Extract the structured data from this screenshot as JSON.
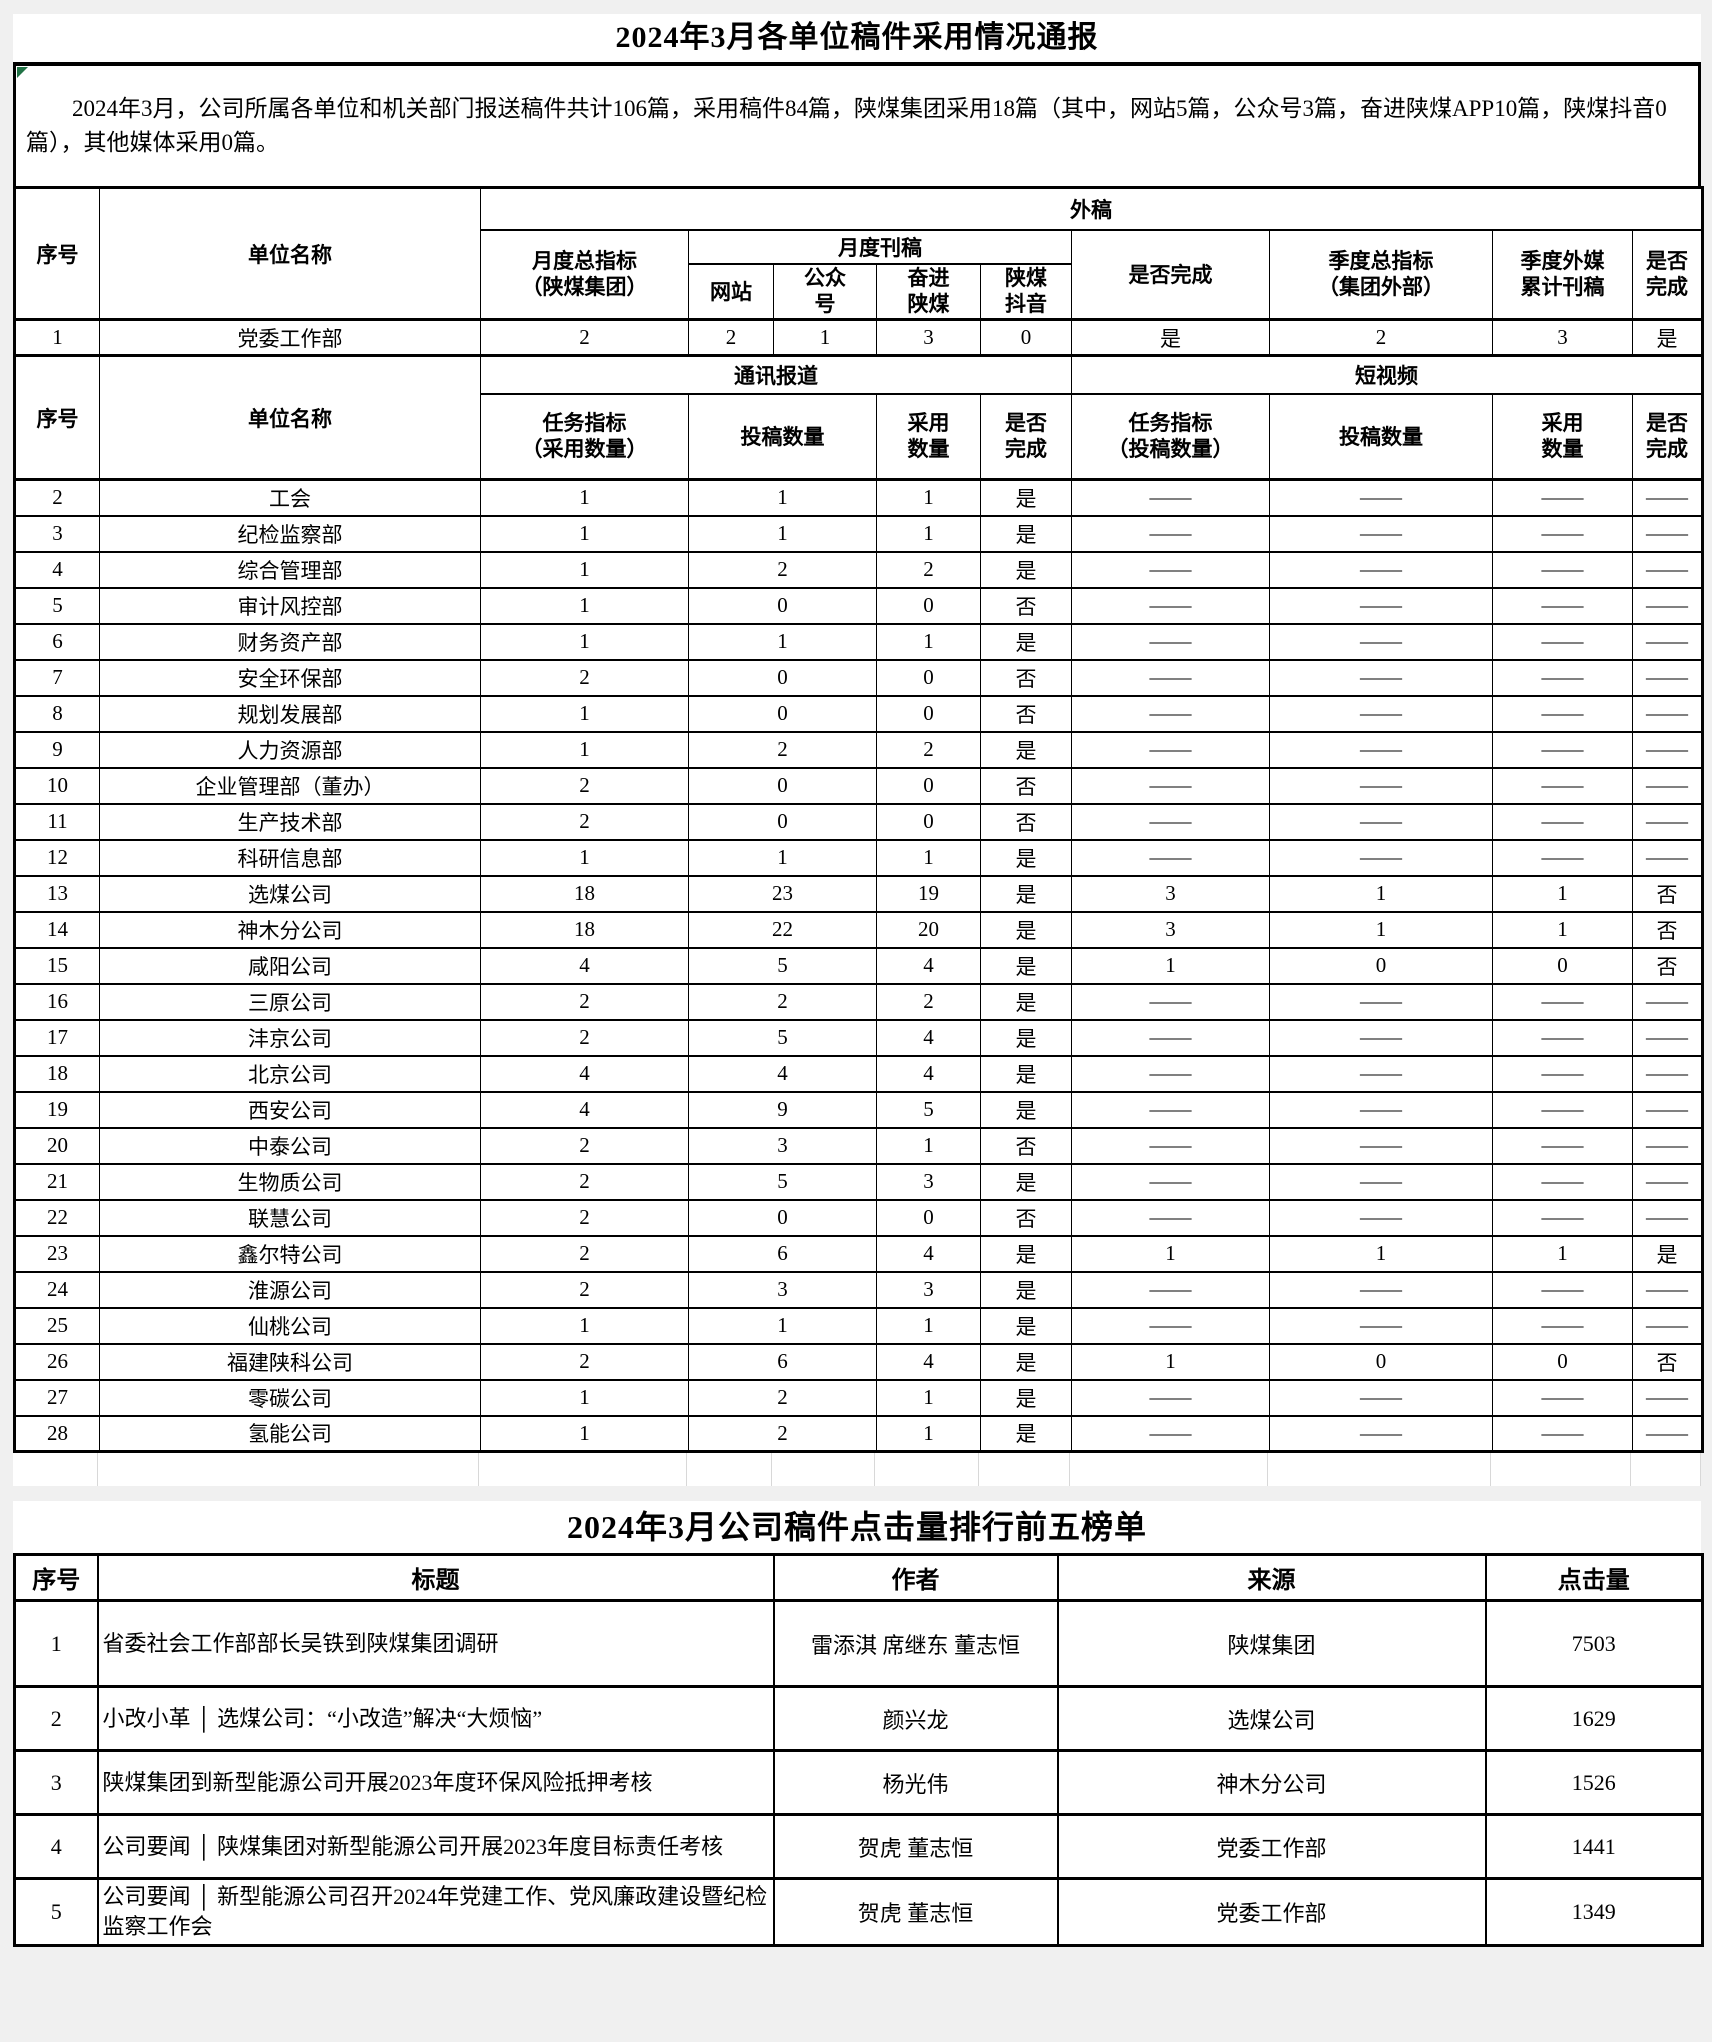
{
  "colors": {
    "error_indicator_green": "#217346",
    "page_margin_gray": "#f0f0f0",
    "border_black": "#000000",
    "faint_gridline": "#d8d8d8"
  },
  "report": {
    "title": "2024年3月各单位稿件采用情况通报",
    "summary": "2024年3月，公司所属各单位和机关部门报送稿件共计106篇，采用稿件84篇，陕煤集团采用18篇（其中，网站5篇，公众号3篇，奋进陕煤APP10篇，陕煤抖音0篇），其他媒体采用0篇。"
  },
  "table1": {
    "header": {
      "seq": "序号",
      "unit": "单位名称",
      "external": "外稿",
      "monthly_total": [
        "月度总指标",
        "（陕煤集团）"
      ],
      "monthly_published": "月度刊稿",
      "website": "网站",
      "wechat": [
        "公众",
        "号"
      ],
      "fenjin_app": [
        "奋进",
        "陕煤"
      ],
      "douyin": [
        "陕煤",
        "抖音"
      ],
      "completed_external": "是否完成",
      "quarter_total": [
        "季度总指标",
        "（集团外部）"
      ],
      "quarter_external_published": [
        "季度外媒",
        "累计刊稿"
      ],
      "completed_quarter": [
        "是否",
        "完成"
      ]
    },
    "first_row": {
      "no": "1",
      "name": "党委工作部",
      "values": [
        "2",
        "2",
        "1",
        "3",
        "0",
        "是",
        "2",
        "3",
        "是"
      ]
    },
    "header2": {
      "seq": "序号",
      "unit": "单位名称",
      "news_report": "通讯报道",
      "short_video": "短视频",
      "task_news": [
        "任务指标",
        "（采用数量）"
      ],
      "submitted_news": "投稿数量",
      "adopted_news": [
        "采用",
        "数量"
      ],
      "completed_news": [
        "是否",
        "完成"
      ],
      "task_video": [
        "任务指标",
        "（投稿数量）"
      ],
      "submitted_video": "投稿数量",
      "adopted_video": [
        "采用",
        "数量"
      ],
      "completed_video": [
        "是否",
        "完成"
      ]
    },
    "rows": [
      {
        "no": "2",
        "name": "工会",
        "values": [
          "1",
          "1",
          "1",
          "是",
          "——",
          "——",
          "——",
          "——"
        ]
      },
      {
        "no": "3",
        "name": "纪检监察部",
        "values": [
          "1",
          "1",
          "1",
          "是",
          "——",
          "——",
          "——",
          "——"
        ]
      },
      {
        "no": "4",
        "name": "综合管理部",
        "values": [
          "1",
          "2",
          "2",
          "是",
          "——",
          "——",
          "——",
          "——"
        ]
      },
      {
        "no": "5",
        "name": "审计风控部",
        "values": [
          "1",
          "0",
          "0",
          "否",
          "——",
          "——",
          "——",
          "——"
        ]
      },
      {
        "no": "6",
        "name": "财务资产部",
        "values": [
          "1",
          "1",
          "1",
          "是",
          "——",
          "——",
          "——",
          "——"
        ]
      },
      {
        "no": "7",
        "name": "安全环保部",
        "values": [
          "2",
          "0",
          "0",
          "否",
          "——",
          "——",
          "——",
          "——"
        ]
      },
      {
        "no": "8",
        "name": "规划发展部",
        "values": [
          "1",
          "0",
          "0",
          "否",
          "——",
          "——",
          "——",
          "——"
        ]
      },
      {
        "no": "9",
        "name": "人力资源部",
        "values": [
          "1",
          "2",
          "2",
          "是",
          "——",
          "——",
          "——",
          "——"
        ]
      },
      {
        "no": "10",
        "name": "企业管理部（董办）",
        "values": [
          "2",
          "0",
          "0",
          "否",
          "——",
          "——",
          "——",
          "——"
        ]
      },
      {
        "no": "11",
        "name": "生产技术部",
        "values": [
          "2",
          "0",
          "0",
          "否",
          "——",
          "——",
          "——",
          "——"
        ]
      },
      {
        "no": "12",
        "name": "科研信息部",
        "values": [
          "1",
          "1",
          "1",
          "是",
          "——",
          "——",
          "——",
          "——"
        ]
      },
      {
        "no": "13",
        "name": "选煤公司",
        "values": [
          "18",
          "23",
          "19",
          "是",
          "3",
          "1",
          "1",
          "否"
        ]
      },
      {
        "no": "14",
        "name": "神木分公司",
        "values": [
          "18",
          "22",
          "20",
          "是",
          "3",
          "1",
          "1",
          "否"
        ]
      },
      {
        "no": "15",
        "name": "咸阳公司",
        "values": [
          "4",
          "5",
          "4",
          "是",
          "1",
          "0",
          "0",
          "否"
        ]
      },
      {
        "no": "16",
        "name": "三原公司",
        "values": [
          "2",
          "2",
          "2",
          "是",
          "——",
          "——",
          "——",
          "——"
        ]
      },
      {
        "no": "17",
        "name": "沣京公司",
        "values": [
          "2",
          "5",
          "4",
          "是",
          "——",
          "——",
          "——",
          "——"
        ]
      },
      {
        "no": "18",
        "name": "北京公司",
        "values": [
          "4",
          "4",
          "4",
          "是",
          "——",
          "——",
          "——",
          "——"
        ]
      },
      {
        "no": "19",
        "name": "西安公司",
        "values": [
          "4",
          "9",
          "5",
          "是",
          "——",
          "——",
          "——",
          "——"
        ]
      },
      {
        "no": "20",
        "name": "中泰公司",
        "values": [
          "2",
          "3",
          "1",
          "否",
          "——",
          "——",
          "——",
          "——"
        ]
      },
      {
        "no": "21",
        "name": "生物质公司",
        "values": [
          "2",
          "5",
          "3",
          "是",
          "——",
          "——",
          "——",
          "——"
        ]
      },
      {
        "no": "22",
        "name": "联慧公司",
        "values": [
          "2",
          "0",
          "0",
          "否",
          "——",
          "——",
          "——",
          "——"
        ]
      },
      {
        "no": "23",
        "name": "鑫尔特公司",
        "values": [
          "2",
          "6",
          "4",
          "是",
          "1",
          "1",
          "1",
          "是"
        ]
      },
      {
        "no": "24",
        "name": "淮源公司",
        "values": [
          "2",
          "3",
          "3",
          "是",
          "——",
          "——",
          "——",
          "——"
        ]
      },
      {
        "no": "25",
        "name": "仙桃公司",
        "values": [
          "1",
          "1",
          "1",
          "是",
          "——",
          "——",
          "——",
          "——"
        ]
      },
      {
        "no": "26",
        "name": "福建陕科公司",
        "values": [
          "2",
          "6",
          "4",
          "是",
          "1",
          "0",
          "0",
          "否"
        ]
      },
      {
        "no": "27",
        "name": "零碳公司",
        "values": [
          "1",
          "2",
          "1",
          "是",
          "——",
          "——",
          "——",
          "——"
        ]
      },
      {
        "no": "28",
        "name": "氢能公司",
        "values": [
          "1",
          "2",
          "1",
          "是",
          "——",
          "——",
          "——",
          "——"
        ]
      }
    ]
  },
  "ranking": {
    "title": "2024年3月公司稿件点击量排行前五榜单",
    "headers": [
      "序号",
      "标题",
      "作者",
      "来源",
      "点击量"
    ],
    "rows": [
      {
        "no": "1",
        "title": "省委社会工作部部长吴铁到陕煤集团调研",
        "author": "雷添淇 席继东 董志恒",
        "source": "陕煤集团",
        "clicks": "7503"
      },
      {
        "no": "2",
        "title": "小改小革 │ 选煤公司：“小改造”解决“大烦恼”",
        "author": "颜兴龙",
        "source": "选煤公司",
        "clicks": "1629"
      },
      {
        "no": "3",
        "title": "陕煤集团到新型能源公司开展2023年度环保风险抵押考核",
        "author": "杨光伟",
        "source": "神木分公司",
        "clicks": "1526"
      },
      {
        "no": "4",
        "title": "公司要闻 │ 陕煤集团对新型能源公司开展2023年度目标责任考核",
        "author": "贺虎 董志恒",
        "source": "党委工作部",
        "clicks": "1441"
      },
      {
        "no": "5",
        "title": "公司要闻 │ 新型能源公司召开2024年党建工作、党风廉政建设暨纪检监察工作会",
        "author": "贺虎 董志恒",
        "source": "党委工作部",
        "clicks": "1349"
      }
    ]
  }
}
